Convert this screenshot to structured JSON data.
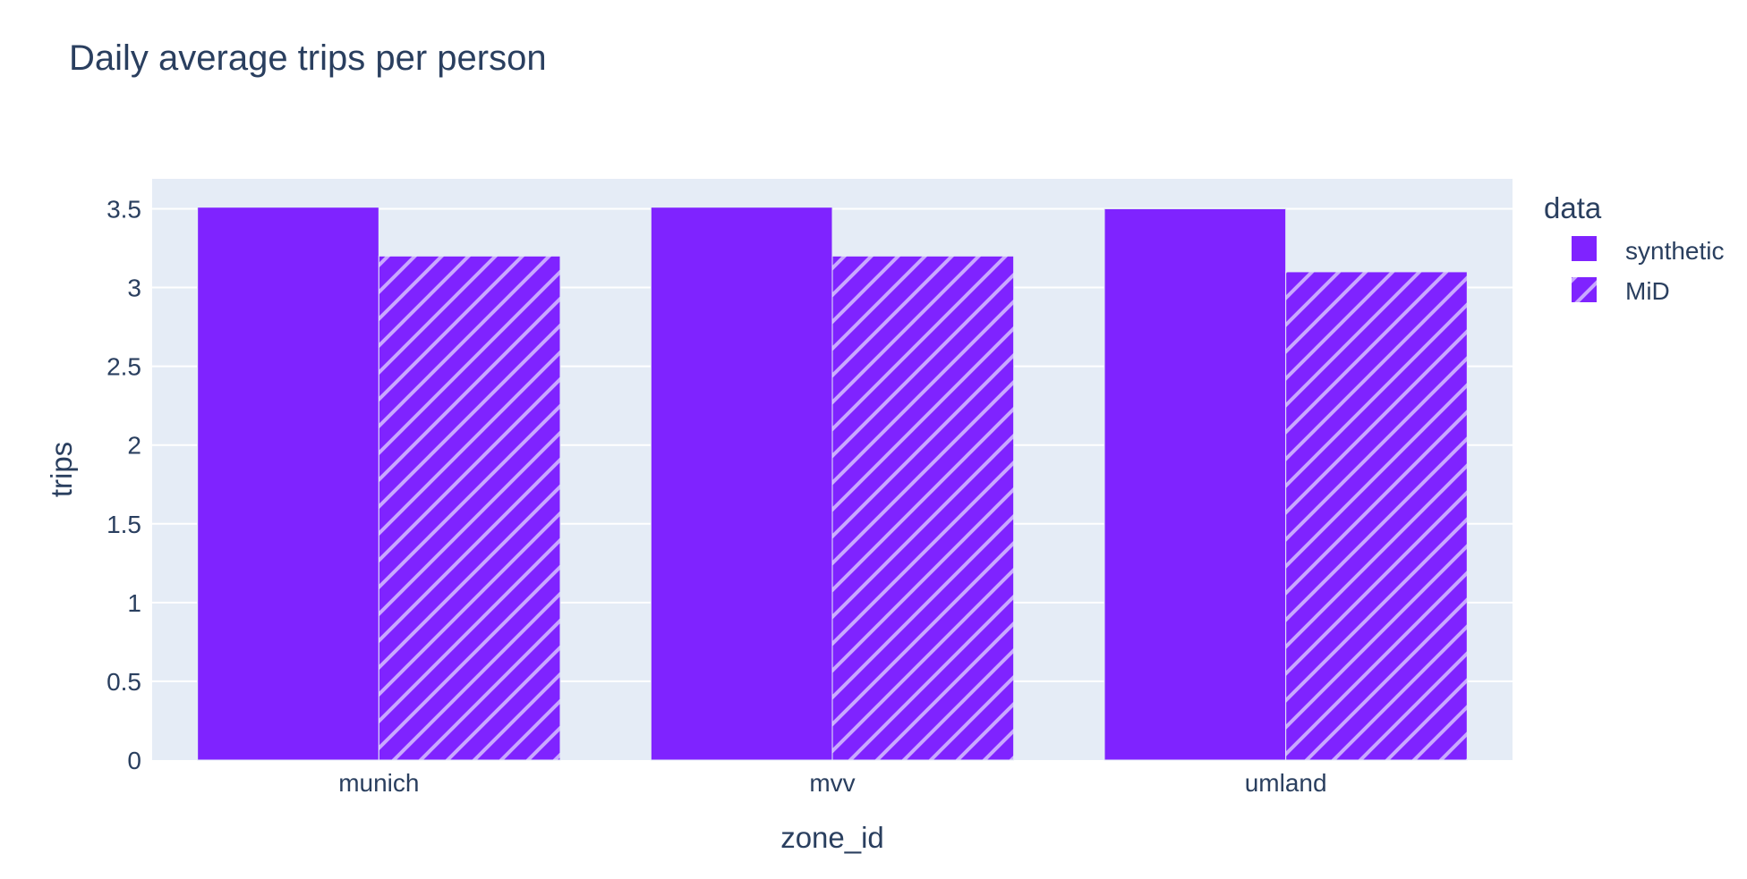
{
  "chart_data": {
    "type": "bar",
    "title": "Daily average trips per person",
    "xlabel": "zone_id",
    "ylabel": "trips",
    "categories": [
      "munich",
      "mvv",
      "umland"
    ],
    "series": [
      {
        "name": "synthetic",
        "values": [
          3.51,
          3.51,
          3.5
        ],
        "color": "#7f23ff",
        "pattern": "solid"
      },
      {
        "name": "MiD",
        "values": [
          3.2,
          3.2,
          3.1
        ],
        "color": "#7f23ff",
        "pattern": "diagonal-hatch"
      }
    ],
    "ylim": [
      0,
      3.69
    ],
    "yticks": [
      0,
      0.5,
      1,
      1.5,
      2,
      2.5,
      3,
      3.5
    ],
    "ytick_labels": [
      "0",
      "0.5",
      "1",
      "1.5",
      "2",
      "2.5",
      "3",
      "3.5"
    ],
    "legend": {
      "title": "data",
      "placement": "right-top"
    },
    "grid": true,
    "colors": {
      "plot_background": "#e5ecf6",
      "grid": "#ffffff",
      "text": "#2a3f5f",
      "hatch": "#c9a8ff"
    }
  }
}
